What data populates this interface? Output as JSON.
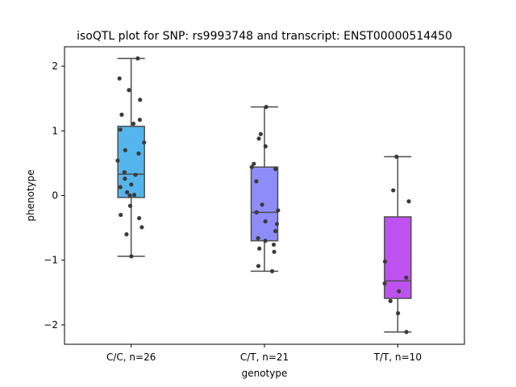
{
  "chart_data": {
    "type": "box",
    "title": "isoQTL plot for SNP: rs9993748 and transcript: ENST00000514450",
    "xlabel": "genotype",
    "ylabel": "phenotype",
    "ylim": [
      -2.3,
      2.3
    ],
    "yticks": [
      -2,
      -1,
      0,
      1,
      2
    ],
    "ytick_labels": [
      "−2",
      "−1",
      "0",
      "1",
      "2"
    ],
    "grid": false,
    "legend": "none",
    "categories": [
      "C/C, n=26",
      "C/T, n=21",
      "T/T, n=10"
    ],
    "box_colors": [
      "#54b5ec",
      "#8d8df9",
      "#be52f0"
    ],
    "edge_color": "#4d4d4d",
    "point_color": "#3a3a3a",
    "groups": [
      {
        "label": "C/C, n=26",
        "min": -0.94,
        "q1": -0.03,
        "median": 0.33,
        "q3": 1.07,
        "max": 2.12,
        "points": [
          2.12,
          1.81,
          1.63,
          1.48,
          1.25,
          1.17,
          1.02,
          0.82,
          0.7,
          0.65,
          0.54,
          0.36,
          0.32,
          0.17,
          0.13,
          0.05,
          0.01,
          0.0,
          -0.16,
          -0.3,
          -0.35,
          -0.49,
          -0.6,
          -0.94,
          1.11,
          0.26
        ]
      },
      {
        "label": "C/T, n=21",
        "min": -1.17,
        "q1": -0.7,
        "median": -0.26,
        "q3": 0.44,
        "max": 1.37,
        "points": [
          1.37,
          0.95,
          0.88,
          0.76,
          0.49,
          0.44,
          0.41,
          0.22,
          -0.14,
          -0.23,
          -0.26,
          -0.4,
          -0.44,
          -0.55,
          -0.66,
          -0.7,
          -0.76,
          -0.82,
          -0.87,
          -1.09,
          -1.17
        ]
      },
      {
        "label": "T/T, n=10",
        "min": -2.11,
        "q1": -1.59,
        "median": -1.32,
        "q3": -0.33,
        "max": 0.6,
        "points": [
          0.6,
          0.08,
          -0.09,
          -1.02,
          -1.27,
          -1.36,
          -1.48,
          -1.63,
          -1.82,
          -2.11
        ]
      }
    ]
  }
}
